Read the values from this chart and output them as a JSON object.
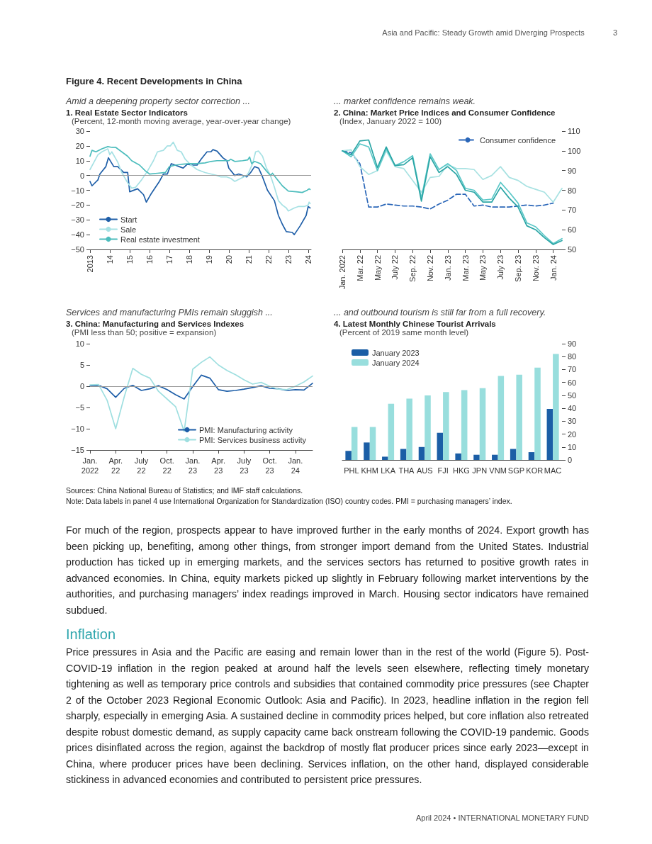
{
  "chart_data": [
    {
      "type": "other",
      "title": "Figure 4. Recent Developments in China",
      "annotations": [
        "Asia and Pacific: Steady Growth amid Diverging Prospects",
        "3"
      ]
    },
    {
      "type": "line",
      "annotations": [
        "Amid a deepening property sector correction ..."
      ],
      "title": "1. Real Estate Sector Indicators",
      "subtitle": "(Percent, 12-month moving average, year-over-year change)",
      "marker": "none",
      "legend": "bottom left",
      "grid": false,
      "xlim": [
        2013,
        2024.15
      ],
      "xticks": [
        {
          "value": 2013,
          "label": "2013"
        },
        {
          "value": 2014,
          "label": "14"
        },
        {
          "value": 2015,
          "label": "15"
        },
        {
          "value": 2016,
          "label": "16"
        },
        {
          "value": 2017,
          "label": "17"
        },
        {
          "value": 2018,
          "label": "18"
        },
        {
          "value": 2019,
          "label": "19"
        },
        {
          "value": 2020,
          "label": "20"
        },
        {
          "value": 2021,
          "label": "21"
        },
        {
          "value": 2022,
          "label": "22"
        },
        {
          "value": 2023,
          "label": "23"
        },
        {
          "value": 2024,
          "label": "24"
        }
      ],
      "ylim": [
        -50,
        30
      ],
      "yticks": [
        {
          "value": -50,
          "label": "−50"
        },
        {
          "value": -40,
          "label": "−40"
        },
        {
          "value": -30,
          "label": "−30"
        },
        {
          "value": -20,
          "label": "−20"
        },
        {
          "value": -10,
          "label": "−10"
        },
        0,
        10,
        20,
        30
      ],
      "ref_lines": [
        {
          "axis": "y",
          "value": 0,
          "color": "#9a9a9a"
        }
      ],
      "series": [
        {
          "name": "Start",
          "color": "#1f5fa8",
          "x": [
            2013.0,
            2013.1,
            2013.4,
            2013.5,
            2013.8,
            2013.93,
            2014.2,
            2014.4,
            2014.7,
            2014.9,
            2015.0,
            2015.4,
            2015.7,
            2015.84,
            2016.1,
            2016.5,
            2016.7,
            2016.9,
            2017.1,
            2017.3,
            2017.5,
            2017.7,
            2017.9,
            2018.2,
            2018.4,
            2018.6,
            2018.9,
            2019.1,
            2019.2,
            2019.4,
            2019.7,
            2019.9,
            2020.0,
            2020.3,
            2020.5,
            2020.7,
            2020.9,
            2021.1,
            2021.3,
            2021.5,
            2021.7,
            2021.95,
            2022.3,
            2022.5,
            2022.7,
            2022.9,
            2023.2,
            2023.3,
            2023.6,
            2023.9,
            2024.0,
            2024.1
          ],
          "values": [
            -4,
            -7,
            -3,
            1,
            6,
            12,
            6,
            6,
            2,
            2,
            -11,
            -9,
            -13,
            -18,
            -12,
            -4,
            1,
            1,
            8,
            7,
            6,
            5,
            7.5,
            7,
            7,
            11,
            16,
            16,
            17.5,
            16.5,
            12,
            10,
            5,
            0,
            1,
            0,
            -1,
            2,
            6,
            5,
            -1,
            -10,
            -17,
            -27,
            -33,
            -38,
            -38.5,
            -40,
            -34,
            -27,
            -21,
            -22
          ]
        },
        {
          "name": "Sale",
          "color": "#a6e1e4",
          "x": [
            2013.0,
            2013.2,
            2013.4,
            2013.6,
            2013.9,
            2014.0,
            2014.1,
            2014.4,
            2014.6,
            2014.9,
            2015.1,
            2015.3,
            2015.6,
            2015.9,
            2016.2,
            2016.4,
            2016.7,
            2016.9,
            2017.05,
            2017.2,
            2017.4,
            2017.6,
            2017.8,
            2018.1,
            2018.4,
            2018.8,
            2019.1,
            2019.4,
            2019.6,
            2019.9,
            2020.1,
            2020.3,
            2020.6,
            2020.9,
            2021.0,
            2021.2,
            2021.35,
            2021.5,
            2021.7,
            2021.9,
            2022.1,
            2022.3,
            2022.5,
            2022.7,
            2022.9,
            2023.0,
            2023.3,
            2023.5,
            2023.8,
            2024.0,
            2024.05,
            2024.1
          ],
          "values": [
            4,
            9,
            14,
            16,
            18,
            14,
            16,
            9,
            2,
            -5,
            -8.5,
            -8,
            -3,
            3,
            10,
            16,
            17,
            20,
            20,
            22.5,
            17,
            16,
            11,
            7,
            4,
            2,
            1,
            0,
            -1,
            -1,
            -2,
            -4,
            -2,
            0,
            2,
            8,
            16,
            16.5,
            13,
            5,
            0,
            -8,
            -17,
            -20,
            -22,
            -24,
            -22,
            -21,
            -21,
            -20,
            -18,
            -19
          ]
        },
        {
          "name": "Real estate investment",
          "color": "#4dbdbd",
          "x": [
            2013.0,
            2013.1,
            2013.3,
            2013.6,
            2013.9,
            2014.1,
            2014.3,
            2014.6,
            2014.9,
            2015.1,
            2015.5,
            2015.8,
            2016.0,
            2016.4,
            2016.8,
            2017.0,
            2017.3,
            2017.6,
            2018.0,
            2018.4,
            2018.8,
            2019.1,
            2019.4,
            2019.9,
            2020.0,
            2020.1,
            2020.3,
            2020.7,
            2020.95,
            2021.05,
            2021.15,
            2021.3,
            2021.6,
            2021.9,
            2022.1,
            2022.2,
            2022.4,
            2022.7,
            2023.0,
            2023.4,
            2023.7,
            2023.95,
            2024.05,
            2024.1
          ],
          "values": [
            13,
            17,
            16,
            18,
            19.5,
            19,
            19,
            16,
            13,
            10,
            7,
            3,
            1,
            1.5,
            2,
            6,
            7,
            7.5,
            8,
            8,
            8.5,
            9.5,
            10,
            10,
            10,
            11,
            9.5,
            10,
            10.5,
            12.5,
            8,
            9.5,
            8,
            3,
            0,
            1.5,
            -2,
            -7,
            -10.5,
            -11,
            -11.5,
            -10,
            -9,
            -9.5
          ]
        }
      ]
    },
    {
      "type": "line",
      "annotations": [
        "... market confidence remains weak."
      ],
      "title": "2. China: Market Price Indices and Consumer Confidence",
      "subtitle": "(Index, January 2022 = 100)",
      "marker": "none",
      "legend": "top right",
      "grid": false,
      "categories": [
        "Jan. 2022",
        null,
        "Mar. 22",
        null,
        "May 22",
        null,
        "July 22",
        null,
        "Sep. 22",
        null,
        "Nov. 22",
        null,
        "Jan. 23",
        null,
        "Mar. 23",
        null,
        "May 23",
        null,
        "July 23",
        null,
        "Sep. 23",
        null,
        "Nov. 23",
        null,
        "Jan. 24",
        null
      ],
      "ylim": [
        50,
        110
      ],
      "yticks": [
        50,
        60,
        70,
        80,
        90,
        100,
        110
      ],
      "series": [
        {
          "name": "Consumer confidence",
          "color": "#2a66b8",
          "line_style": "dashed",
          "values": [
            100,
            99,
            93.5,
            71.5,
            71.5,
            73,
            72.5,
            72,
            72,
            71.5,
            70.5,
            73,
            75,
            78,
            78,
            72,
            72.5,
            71.5,
            71.5,
            71.5,
            72,
            72.5,
            72,
            72.5,
            73.5,
            null
          ]
        },
        {
          "color": "#a8e2e2",
          "values": [
            100,
            100.5,
            92,
            88,
            90,
            100,
            92,
            91,
            85,
            79,
            86.5,
            87,
            93,
            91,
            91,
            90.5,
            85.5,
            87.5,
            92,
            86.5,
            85,
            82,
            80.5,
            79,
            74,
            81
          ]
        },
        {
          "color": "#5cc8c8",
          "values": [
            100,
            97,
            103.5,
            102,
            90,
            101,
            92.5,
            94.5,
            97.5,
            76,
            98.5,
            90.5,
            93.5,
            90,
            81,
            80,
            75,
            75.5,
            84,
            79,
            73.5,
            63.5,
            61.5,
            57,
            53,
            55.5
          ]
        },
        {
          "color": "#2aa5a5",
          "values": [
            100,
            98,
            105,
            105.5,
            91.5,
            102,
            92.5,
            93,
            96.5,
            74.5,
            97,
            89,
            92,
            88,
            80,
            79,
            74,
            74,
            81.5,
            76,
            71.5,
            62,
            60,
            56,
            52.5,
            54.5
          ]
        }
      ]
    },
    {
      "type": "line",
      "annotations": [
        "Services and manufacturing PMIs remain sluggish ..."
      ],
      "title": "3. China: Manufacturing and Services Indexes",
      "subtitle": "(PMI less than 50; positive = expansion)",
      "marker": "none",
      "legend": "bottom right",
      "grid": false,
      "categories": [
        "Jan.\n2022",
        null,
        null,
        "Apr.\n22",
        null,
        null,
        "July\n22",
        null,
        null,
        "Oct.\n22",
        null,
        null,
        "Jan.\n23",
        null,
        null,
        "Apr.\n23",
        null,
        null,
        "July\n23",
        null,
        null,
        "Oct.\n23",
        null,
        null,
        "Jan.\n24",
        null,
        null
      ],
      "ylim": [
        -15,
        10
      ],
      "yticks": [
        {
          "value": -15,
          "label": "−15"
        },
        {
          "value": -10,
          "label": "−10"
        },
        {
          "value": -5,
          "label": "−5"
        },
        0,
        5,
        10
      ],
      "ref_lines": [
        {
          "axis": "y",
          "value": 0,
          "color": "#9a9a9a"
        }
      ],
      "series": [
        {
          "name": "PMI: Manufacturing activity",
          "color": "#1d5ea8",
          "values": [
            0,
            0.2,
            -0.6,
            -2.6,
            -0.5,
            0.2,
            -1,
            -0.6,
            0.1,
            -0.8,
            -2,
            -3,
            -0.1,
            2.6,
            1.9,
            -0.8,
            -1.2,
            -1,
            -0.7,
            -0.3,
            0.1,
            -0.5,
            -0.6,
            -1,
            -0.8,
            -0.9,
            0.7
          ]
        },
        {
          "name": "PMI: Services business activity",
          "color": "#9fdfe0",
          "values": [
            0.3,
            0.4,
            -3.3,
            -10,
            -2.5,
            4.2,
            2.8,
            1.9,
            -1.2,
            -3,
            -4.8,
            -10.6,
            4,
            5.6,
            6.9,
            5,
            3.7,
            2.7,
            1.5,
            0.5,
            0.9,
            0,
            -0.7,
            -0.8,
            0,
            1,
            2.4
          ]
        }
      ]
    },
    {
      "type": "bar",
      "annotations": [
        "... and outbound tourism is still far from a full recovery."
      ],
      "title": "4. Latest Monthly Chinese Tourist Arrivals",
      "subtitle": "(Percent of 2019 same month level)",
      "legend": "top left",
      "grid": false,
      "categories": [
        "PHL",
        "KHM",
        "LKA",
        "THA",
        "AUS",
        "FJI",
        "HKG",
        "JPN",
        "VNM",
        "SGP",
        "KOR",
        "MAC"
      ],
      "ylim": [
        0,
        90
      ],
      "yticks": [
        0,
        10,
        20,
        30,
        40,
        50,
        60,
        70,
        80,
        90
      ],
      "series": [
        {
          "name": "January 2023",
          "color": "#1b5ea6",
          "values": [
            7,
            13.5,
            2.5,
            8.5,
            10,
            21,
            5,
            4,
            4,
            8.5,
            6,
            39.5
          ]
        },
        {
          "name": "January 2024",
          "color": "#98dedd",
          "values": [
            25.5,
            25.5,
            43.5,
            47.5,
            50,
            52.5,
            54,
            55.5,
            65,
            66,
            71.5,
            82
          ]
        }
      ]
    },
    {
      "type": "other",
      "annotations": [
        "Sources: China National Bureau of Statistics; and IMF staff calculations.",
        "Note: Data labels in panel 4 use International Organization for Standardization (ISO) country codes. PMI = purchasing managers’ index."
      ]
    },
    {
      "type": "other",
      "annotations": [
        "For much of the region, prospects appear to have improved further in the early months of 2024. Export growth has been picking up, benefiting, among other things, from stronger import demand from the United States. Industrial production has ticked up in emerging markets, and the services sectors has returned to positive growth rates in advanced economies. In China, equity markets picked up slightly in February following market interventions by the authorities, and purchasing managers’ index readings improved in March. Housing sector indicators have remained subdued."
      ]
    },
    {
      "type": "other",
      "title": "Inflation",
      "annotations": [
        "Price pressures in Asia and the Pacific are easing and remain lower than in the rest of the world (Figure 5). Post-COVID-19 inflation in the region peaked at around half the levels seen elsewhere, reflecting timely monetary tightening as well as temporary price controls and subsidies that contained commodity price pressures (see Chapter 2 of the October 2023 Regional Economic Outlook: Asia and Pacific). In 2023, headline inflation in the region fell sharply, especially in emerging Asia. A sustained decline in commodity prices helped, but core inflation also retreated despite robust domestic demand, as supply capacity came back onstream following the COVID-19 pandemic. Goods prices disinflated across the region, against the backdrop of mostly flat producer prices since early 2023—except in China, where producer prices have been declining. Services inflation, on the other hand, displayed considerable stickiness in advanced economies and contributed to persistent price pressures."
      ]
    },
    {
      "type": "other",
      "annotations": [
        "April 2024 • INTERNATIONAL MONETARY FUND"
      ]
    }
  ]
}
